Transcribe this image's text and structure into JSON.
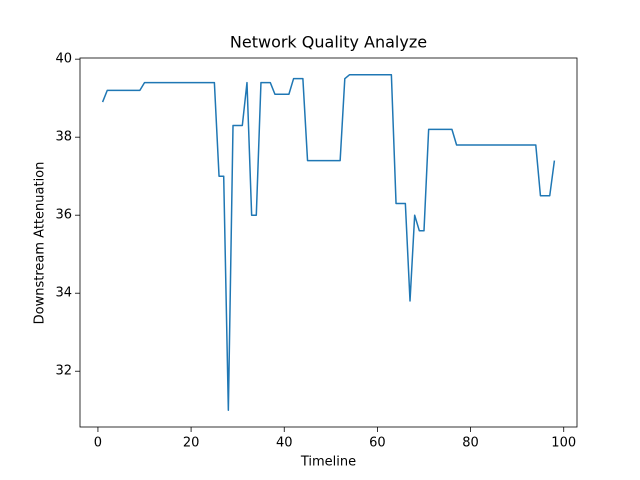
{
  "chart_data": {
    "type": "line",
    "title": "Network Quality Analyze",
    "x_label": "Timeline",
    "y_label": "Downstream Attenuation",
    "x": [
      1,
      2,
      3,
      4,
      5,
      6,
      7,
      8,
      9,
      10,
      11,
      12,
      13,
      14,
      15,
      16,
      17,
      18,
      19,
      20,
      21,
      22,
      23,
      24,
      25,
      26,
      27,
      28,
      29,
      30,
      31,
      32,
      33,
      34,
      35,
      36,
      37,
      38,
      39,
      40,
      41,
      42,
      43,
      44,
      45,
      46,
      47,
      48,
      49,
      50,
      51,
      52,
      53,
      54,
      55,
      56,
      57,
      58,
      59,
      60,
      61,
      62,
      63,
      64,
      65,
      66,
      67,
      68,
      69,
      70,
      71,
      72,
      73,
      74,
      75,
      76,
      77,
      78,
      79,
      80,
      81,
      82,
      83,
      84,
      85,
      86,
      87,
      88,
      89,
      90,
      91,
      92,
      93,
      94,
      95,
      96,
      97,
      98
    ],
    "series": [
      {
        "color": "#1f77b4",
        "values": [
          38.9,
          39.2,
          39.2,
          39.2,
          39.2,
          39.2,
          39.2,
          39.2,
          39.2,
          39.4,
          39.4,
          39.4,
          39.4,
          39.4,
          39.4,
          39.4,
          39.4,
          39.4,
          39.4,
          39.4,
          39.4,
          39.4,
          39.4,
          39.4,
          39.4,
          37.0,
          37.0,
          31.0,
          38.3,
          38.3,
          38.3,
          39.4,
          36.0,
          36.0,
          39.4,
          39.4,
          39.4,
          39.1,
          39.1,
          39.1,
          39.1,
          39.5,
          39.5,
          39.5,
          37.4,
          37.4,
          37.4,
          37.4,
          37.4,
          37.4,
          37.4,
          37.4,
          39.5,
          39.6,
          39.6,
          39.6,
          39.6,
          39.6,
          39.6,
          39.6,
          39.6,
          39.6,
          39.6,
          36.3,
          36.3,
          36.3,
          33.8,
          36.0,
          35.6,
          35.6,
          38.2,
          38.2,
          38.2,
          38.2,
          38.2,
          38.2,
          37.8,
          37.8,
          37.8,
          37.8,
          37.8,
          37.8,
          37.8,
          37.8,
          37.8,
          37.8,
          37.8,
          37.8,
          37.8,
          37.8,
          37.8,
          37.8,
          37.8,
          37.8,
          36.5,
          36.5,
          36.5,
          37.4
        ]
      }
    ],
    "xlim": [
      -3.85,
      102.85
    ],
    "xticks": [
      0,
      20,
      40,
      60,
      80,
      100
    ],
    "ylim": [
      30.57,
      40.03
    ],
    "yticks": [
      32,
      34,
      36,
      38,
      40
    ],
    "grid": false
  }
}
